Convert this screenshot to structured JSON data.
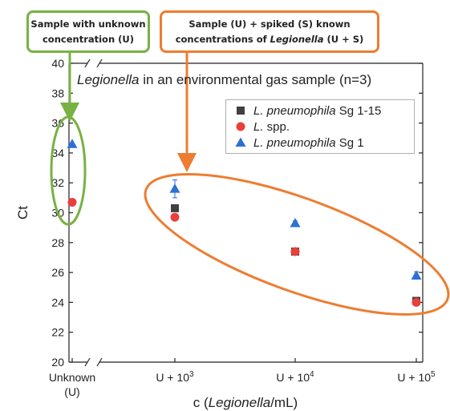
{
  "chart_data": {
    "type": "scatter",
    "title_italic": "Legionella",
    "title_rest": " in an environmental gas sample (n=3)",
    "ylabel": "Ct",
    "xlabel_pre": "c (",
    "xlabel_italic": "Legionella",
    "xlabel_post": "/mL)",
    "ylim": [
      20,
      40
    ],
    "yticks": [
      "20",
      "22",
      "24",
      "26",
      "28",
      "30",
      "32",
      "34",
      "36",
      "38",
      "40"
    ],
    "categories": [
      {
        "line1": "Unknown",
        "line2": "(U)",
        "sup": ""
      },
      {
        "line1": "U + 10",
        "line2": "",
        "sup": "3"
      },
      {
        "line1": "U + 10",
        "line2": "",
        "sup": "4"
      },
      {
        "line1": "U + 10",
        "line2": "",
        "sup": "5"
      }
    ],
    "series": [
      {
        "name_italic": "L. pneumophila",
        "name_rest": " Sg 1-15",
        "marker": "square",
        "color": "#404040",
        "values": [
          null,
          30.3,
          27.4,
          24.1
        ],
        "errors": [
          0,
          0.15,
          0.15,
          0.2
        ]
      },
      {
        "name_italic": "L.",
        "name_rest": " spp.",
        "marker": "circle",
        "color": "#e8403a",
        "values": [
          30.7,
          29.7,
          27.4,
          24.0
        ],
        "errors": [
          0,
          0.15,
          0.15,
          0.2
        ]
      },
      {
        "name_italic": "L. pneumophila",
        "name_rest": " Sg 1",
        "marker": "triangle",
        "color": "#2e6fd6",
        "values": [
          34.6,
          31.6,
          29.3,
          25.8
        ],
        "errors": [
          0,
          0.6,
          0.15,
          0.25
        ]
      }
    ],
    "legend_position": "top-right",
    "grid": false
  },
  "callouts": {
    "unknown": {
      "line1": "Sample with unknown",
      "line2": "concentration (U)",
      "color": "#79b143"
    },
    "spiked": {
      "line1": "Sample (U) + spiked (S) known",
      "line2_pre": "concentrations of ",
      "line2_italic": "Legionella",
      "line2_post": "  (U + S)",
      "color": "#ed7d31"
    }
  }
}
